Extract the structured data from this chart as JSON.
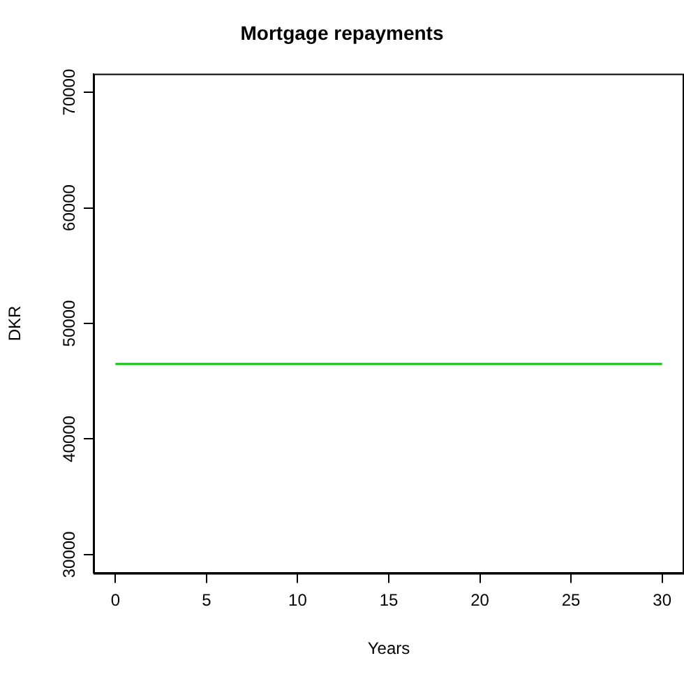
{
  "chart_data": {
    "type": "line",
    "title": "Mortgage repayments",
    "xlabel": "Years",
    "ylabel": "DKR",
    "x": [
      0,
      30
    ],
    "series": [
      {
        "color": "#00cc00",
        "values": [
          46500,
          46500
        ]
      }
    ],
    "xlim": [
      -1.2,
      31.2
    ],
    "xticks": [
      0,
      5,
      10,
      15,
      20,
      25,
      30
    ],
    "ylim": [
      28400,
      71600
    ],
    "yticks": [
      30000,
      40000,
      50000,
      60000,
      70000
    ],
    "grid": false,
    "legend": false,
    "marker": "none",
    "line_style": "solid"
  }
}
